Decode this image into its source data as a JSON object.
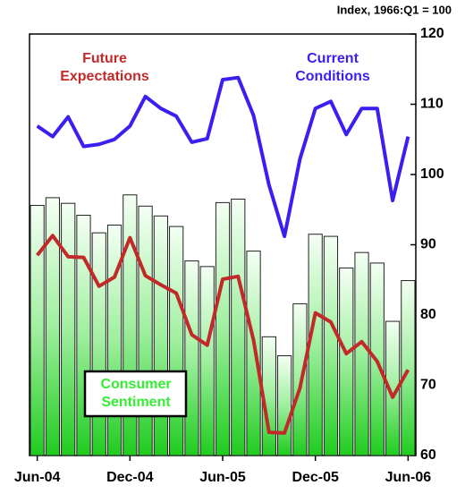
{
  "chart_data": {
    "type": "bar",
    "y_axis_label": "Index, 1966:Q1 = 100",
    "categories": [
      "Jun-04",
      null,
      null,
      null,
      null,
      null,
      "Dec-04",
      null,
      null,
      null,
      null,
      null,
      "Jun-05",
      null,
      null,
      null,
      null,
      null,
      "Dec-05",
      null,
      null,
      null,
      null,
      null,
      "Jun-06"
    ],
    "series": [
      {
        "name": "Consumer Sentiment",
        "type": "bar",
        "color": "#33ee33",
        "values": [
          95.6,
          96.7,
          95.9,
          94.2,
          91.7,
          92.8,
          97.1,
          95.5,
          94.1,
          92.6,
          87.7,
          86.9,
          96.0,
          96.5,
          89.1,
          76.9,
          74.2,
          81.6,
          91.5,
          91.2,
          86.7,
          88.9,
          87.4,
          79.1,
          84.9
        ]
      },
      {
        "name": "Current Conditions",
        "type": "line",
        "color": "#3a1ff0",
        "values": [
          106.9,
          105.4,
          108.2,
          104.0,
          104.3,
          105.0,
          106.9,
          111.1,
          109.4,
          108.3,
          104.6,
          105.1,
          113.5,
          113.8,
          108.4,
          98.5,
          91.2,
          102.2,
          109.4,
          110.4,
          105.7,
          109.4,
          109.4,
          96.3,
          105.4
        ]
      },
      {
        "name": "Future Expectations",
        "type": "line",
        "color": "#c22a2a",
        "values": [
          88.5,
          91.3,
          88.3,
          88.2,
          84.1,
          85.4,
          91.0,
          85.6,
          84.3,
          83.1,
          77.2,
          75.7,
          85.1,
          85.5,
          76.4,
          63.3,
          63.2,
          69.6,
          80.3,
          79.0,
          74.5,
          76.2,
          73.4,
          68.3,
          72.2
        ]
      }
    ],
    "ylim": [
      60,
      120
    ],
    "yticks": [
      60,
      70,
      80,
      90,
      100,
      110,
      120
    ],
    "grid": false
  }
}
